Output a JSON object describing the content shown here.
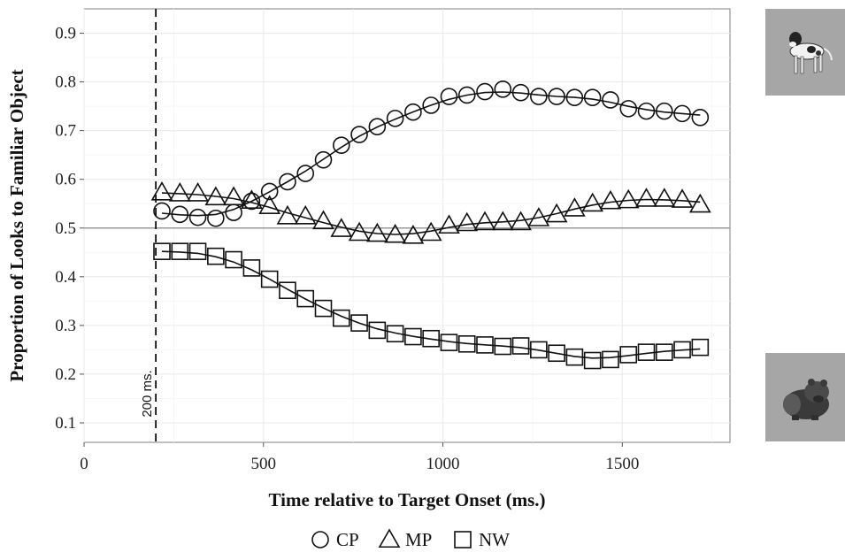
{
  "chart_data": {
    "type": "line",
    "xlabel": "Time relative to Target Onset (ms.)",
    "ylabel": "Proportion of Looks to Familiar Object",
    "xlim": [
      0,
      1800
    ],
    "ylim": [
      0.06,
      0.95
    ],
    "xticks": [
      0,
      500,
      1000,
      1500
    ],
    "yticks": [
      0.1,
      0.2,
      0.3,
      0.4,
      0.5,
      0.6,
      0.7,
      0.8,
      0.9
    ],
    "reference_hline": 0.5,
    "reference_vline": {
      "x": 200,
      "label": "200 ms.",
      "style": "dashed"
    },
    "grid": true,
    "legend_position": "bottom",
    "x": [
      217,
      267,
      317,
      367,
      417,
      467,
      517,
      567,
      617,
      667,
      717,
      767,
      817,
      867,
      917,
      967,
      1017,
      1067,
      1117,
      1167,
      1217,
      1267,
      1317,
      1367,
      1417,
      1467,
      1517,
      1567,
      1617,
      1667,
      1717
    ],
    "series": [
      {
        "name": "CP",
        "marker": "circle",
        "values": [
          0.535,
          0.528,
          0.522,
          0.52,
          0.532,
          0.555,
          0.575,
          0.595,
          0.612,
          0.64,
          0.67,
          0.692,
          0.708,
          0.725,
          0.738,
          0.752,
          0.77,
          0.773,
          0.78,
          0.785,
          0.778,
          0.77,
          0.77,
          0.768,
          0.768,
          0.763,
          0.745,
          0.74,
          0.74,
          0.735,
          0.727
        ]
      },
      {
        "name": "MP",
        "marker": "triangle",
        "values": [
          0.573,
          0.571,
          0.571,
          0.563,
          0.563,
          0.556,
          0.545,
          0.524,
          0.524,
          0.514,
          0.498,
          0.49,
          0.488,
          0.486,
          0.484,
          0.49,
          0.505,
          0.51,
          0.512,
          0.512,
          0.512,
          0.52,
          0.528,
          0.54,
          0.55,
          0.555,
          0.557,
          0.56,
          0.56,
          0.558,
          0.548
        ]
      },
      {
        "name": "NW",
        "marker": "square",
        "values": [
          0.452,
          0.452,
          0.452,
          0.442,
          0.435,
          0.418,
          0.395,
          0.372,
          0.355,
          0.335,
          0.315,
          0.305,
          0.29,
          0.283,
          0.277,
          0.273,
          0.265,
          0.262,
          0.26,
          0.257,
          0.258,
          0.25,
          0.243,
          0.235,
          0.228,
          0.23,
          0.24,
          0.245,
          0.245,
          0.25,
          0.255
        ]
      }
    ]
  },
  "images": {
    "top": {
      "icon": "dog-photo"
    },
    "bottom": {
      "icon": "wombat-photo"
    }
  }
}
